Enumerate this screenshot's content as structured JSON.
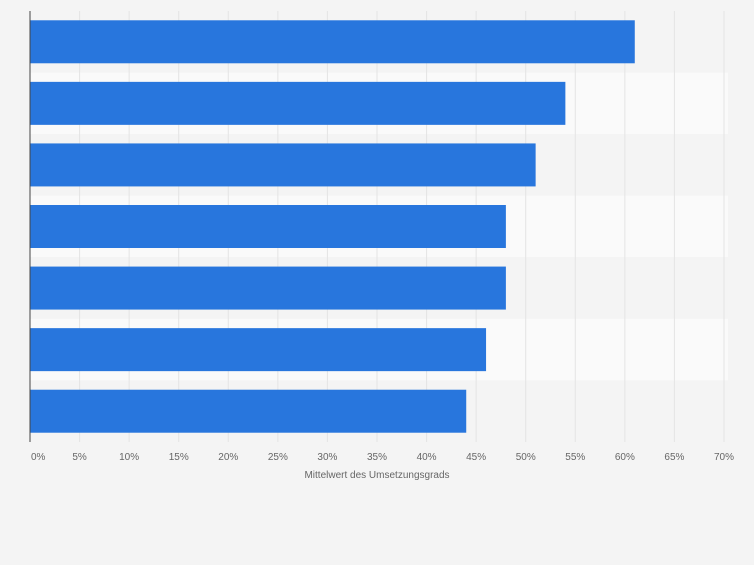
{
  "chart_data": {
    "type": "bar",
    "orientation": "horizontal",
    "title": "",
    "categories": [
      "",
      "",
      "",
      "",
      "",
      "",
      ""
    ],
    "values": [
      61,
      54,
      51,
      48,
      48,
      46,
      44
    ],
    "xlabel": "Mittelwert des Umsetzungsgrads",
    "ylabel": "",
    "xlim": [
      0,
      70
    ],
    "tick_step": 5,
    "tick_labels": [
      "0%",
      "5%",
      "10%",
      "15%",
      "20%",
      "25%",
      "30%",
      "35%",
      "40%",
      "45%",
      "50%",
      "55%",
      "60%",
      "65%",
      "70%"
    ],
    "grid": true,
    "bar_color": "#2876dd",
    "band_color_odd": "#f4f4f4",
    "band_color_even": "#fafafa",
    "gridline_color": "#e4e4e4",
    "axis_color": "#444444"
  }
}
